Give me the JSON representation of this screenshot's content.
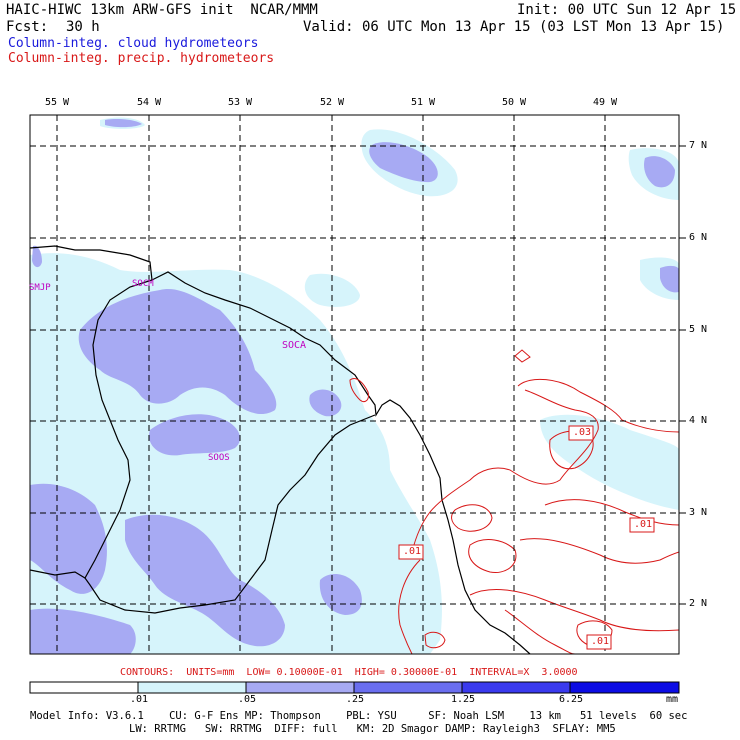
{
  "header": {
    "line1_left": "HAIC-HIWC 13km ARW-GFS init  NCAR/MMM",
    "line1_right": "Init: 00 UTC Sun 12 Apr 15",
    "fcst_label": "Fcst:",
    "fcst_value": "30 h",
    "valid": "Valid: 06 UTC Mon 13 Apr 15 (03 LST Mon 13 Apr 15)",
    "legend_cloud": "Column-integ. cloud hydrometeors",
    "legend_precip": "Column-integ. precip. hydrometeors"
  },
  "colors": {
    "cloud_light": "#d6f4fb",
    "cloud_mid": "#a7aaf3",
    "cloud_dark": "#6a6eef",
    "cloud_darker": "#3a3aee",
    "cloud_darkest": "#0c0ce4",
    "precip": "#d81818",
    "coast": "#000000"
  },
  "map": {
    "lon_labels": [
      "55 W",
      "54 W",
      "53 W",
      "52 W",
      "51 W",
      "50 W",
      "49 W"
    ],
    "lat_labels": [
      "7 N",
      "6 N",
      "5 N",
      "4 N",
      "3 N",
      "2 N"
    ],
    "stations": [
      "SMJP",
      "SOCM",
      "SOCA",
      "SOOS"
    ],
    "contour_labels": [
      ".03",
      ".01",
      ".01",
      ".01"
    ]
  },
  "footer": {
    "contours": "CONTOURS:  UNITS=mm  LOW= 0.10000E-01  HIGH= 0.30000E-01  INTERVAL=X  3.0000",
    "colorbar_ticks": [
      ".01",
      ".05",
      ".25",
      "1.25",
      "6.25"
    ],
    "colorbar_unit": "mm",
    "model_line1": "Model Info: V3.6.1    CU: G-F Ens MP: Thompson    PBL: YSU     SF: Noah LSM    13 km   51 levels  60 sec",
    "model_line2": "LW: RRTMG   SW: RRTMG  DIFF: full   KM: 2D Smagor DAMP: Rayleigh3  SFLAY: MM5"
  }
}
